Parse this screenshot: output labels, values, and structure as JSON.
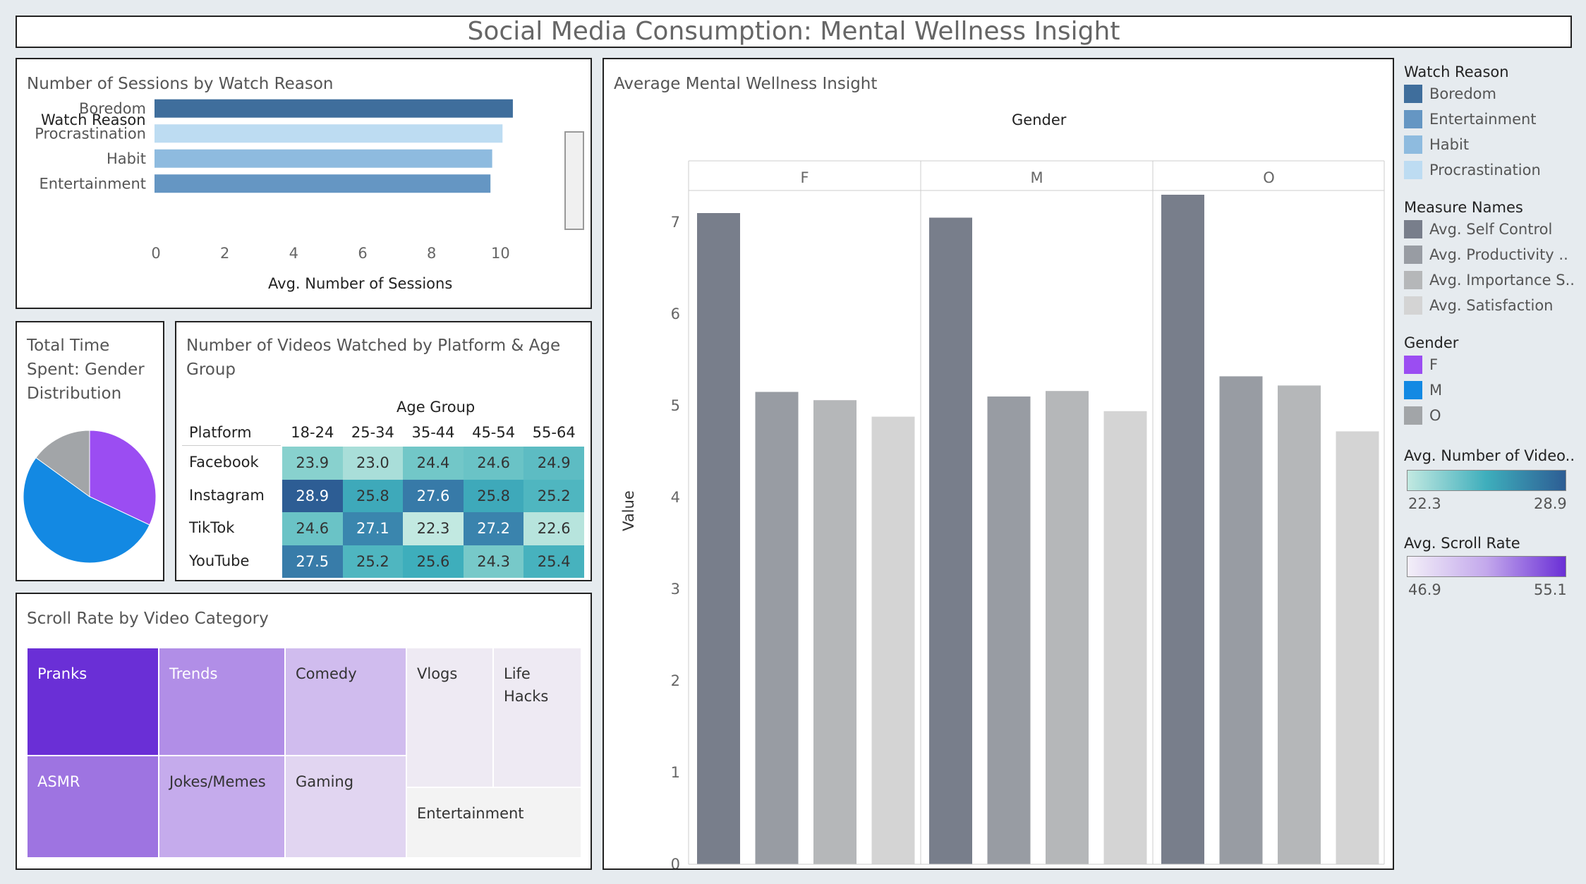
{
  "dashboard_title": "Social Media Consumption: Mental Wellness Insight",
  "sessions_panel": {
    "title": "Number of Sessions by Watch Reason",
    "row_header": "Watch Reason",
    "axis_title": "Avg. Number of Sessions",
    "ticks": [
      "0",
      "2",
      "4",
      "6",
      "8",
      "10"
    ]
  },
  "pie_panel": {
    "title_lines": [
      "Total Time",
      "Spent: Gender",
      "Distribution"
    ]
  },
  "heatmap_panel": {
    "title_lines": [
      "Number of Videos Watched by Platform & Age",
      "Group"
    ],
    "col_header": "Age Group",
    "row_header": "Platform"
  },
  "treemap_panel": {
    "title": "Scroll Rate by Video Category"
  },
  "wellness_panel": {
    "title": "Average Mental Wellness Insight",
    "col_header": "Gender",
    "y_axis_title": "Value",
    "y_ticks": [
      "0",
      "1",
      "2",
      "3",
      "4",
      "5",
      "6",
      "7"
    ]
  },
  "legends": {
    "watch_reason": {
      "title": "Watch Reason",
      "items": [
        {
          "label": "Boredom",
          "color": "#3f6e9c"
        },
        {
          "label": "Entertainment",
          "color": "#6596c3"
        },
        {
          "label": "Habit",
          "color": "#8ebbdf"
        },
        {
          "label": "Procrastination",
          "color": "#bddcf2"
        }
      ]
    },
    "measure_names": {
      "title": "Measure Names",
      "items": [
        {
          "label": "Avg. Self Control",
          "color": "#787e8b"
        },
        {
          "label": "Avg. Productivity ..",
          "color": "#989ca3"
        },
        {
          "label": "Avg. Importance S..",
          "color": "#b5b7b9"
        },
        {
          "label": "Avg. Satisfaction",
          "color": "#d4d4d4"
        }
      ]
    },
    "gender": {
      "title": "Gender",
      "items": [
        {
          "label": "F",
          "color": "#9b4df2"
        },
        {
          "label": "M",
          "color": "#1389e3"
        },
        {
          "label": "O",
          "color": "#a2a5a8"
        }
      ]
    },
    "videos_gradient": {
      "title": "Avg. Number of Video..",
      "min": "22.3",
      "max": "28.9"
    },
    "scroll_gradient": {
      "title": "Avg. Scroll Rate",
      "min": "46.9",
      "max": "55.1"
    }
  },
  "chart_data": [
    {
      "type": "bar",
      "orientation": "horizontal",
      "title": "Number of Sessions by Watch Reason",
      "categories": [
        "Boredom",
        "Procrastination",
        "Habit",
        "Entertainment"
      ],
      "values": [
        10.4,
        10.1,
        9.8,
        9.75
      ],
      "colors": [
        "#3f6e9c",
        "#bddcf2",
        "#8ebbdf",
        "#6596c3"
      ],
      "xlabel": "Avg. Number of Sessions",
      "xlim": [
        0,
        11
      ]
    },
    {
      "type": "pie",
      "title": "Total Time Spent: Gender Distribution",
      "categories": [
        "F",
        "M",
        "O"
      ],
      "values": [
        32,
        53,
        15
      ],
      "colors": [
        "#9b4df2",
        "#1389e3",
        "#a2a5a8"
      ]
    },
    {
      "type": "heatmap",
      "title": "Number of Videos Watched by Platform & Age Group",
      "x": [
        "18-24",
        "25-34",
        "35-44",
        "45-54",
        "55-64"
      ],
      "y": [
        "Facebook",
        "Instagram",
        "TikTok",
        "YouTube"
      ],
      "values": [
        [
          23.9,
          23.0,
          24.4,
          24.6,
          24.9
        ],
        [
          28.9,
          25.8,
          27.6,
          25.8,
          25.2
        ],
        [
          24.6,
          27.1,
          22.3,
          27.2,
          22.6
        ],
        [
          27.5,
          25.2,
          25.6,
          24.3,
          25.4
        ]
      ],
      "range": [
        22.3,
        28.9
      ]
    },
    {
      "type": "treemap",
      "title": "Scroll Rate by Video Category",
      "categories": [
        "Pranks",
        "Trends",
        "Comedy",
        "Vlogs",
        "Life Hacks",
        "ASMR",
        "Jokes/Memes",
        "Gaming",
        "Entertainment"
      ],
      "values": [
        55.1,
        51.8,
        50.3,
        48.0,
        48.0,
        52.6,
        50.9,
        49.4,
        46.9
      ]
    },
    {
      "type": "bar",
      "title": "Average Mental Wellness Insight",
      "categories": [
        "F",
        "M",
        "O"
      ],
      "series": [
        {
          "name": "Avg. Self Control",
          "values": [
            7.1,
            7.05,
            7.3
          ]
        },
        {
          "name": "Avg. Productivity ..",
          "values": [
            5.15,
            5.1,
            5.32
          ]
        },
        {
          "name": "Avg. Importance S..",
          "values": [
            5.06,
            5.16,
            5.22
          ]
        },
        {
          "name": "Avg. Satisfaction",
          "values": [
            4.88,
            4.94,
            4.72
          ]
        }
      ],
      "ylabel": "Value",
      "ylim": [
        0,
        7.9
      ]
    }
  ]
}
